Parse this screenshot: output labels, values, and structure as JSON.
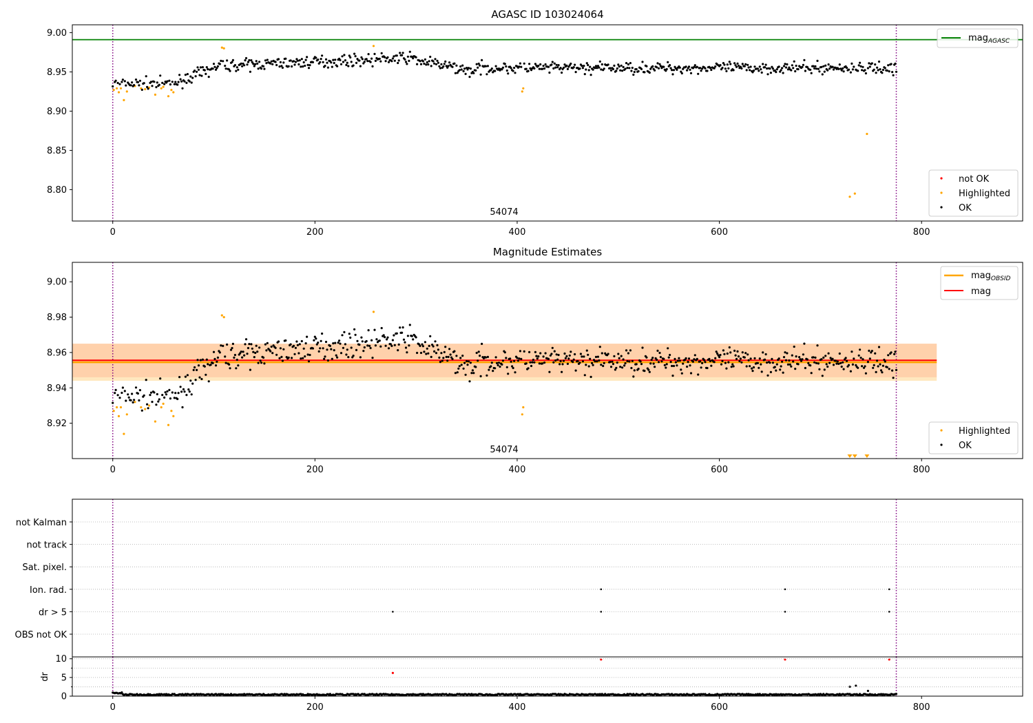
{
  "chart_data": [
    {
      "type": "scatter",
      "title": "AGASC ID 103024064",
      "xlim": [
        -40,
        900
      ],
      "ylim": [
        8.76,
        9.01
      ],
      "x_ticks": [
        "0",
        "200",
        "400",
        "600",
        "800"
      ],
      "y_ticks": [
        "8.80",
        "8.85",
        "8.90",
        "8.95",
        "9.00"
      ],
      "y_tick_values": [
        8.8,
        8.85,
        8.9,
        8.95,
        9.0
      ],
      "vlines": [
        0,
        775
      ],
      "annotation": {
        "text": "54074",
        "x": 387
      },
      "hlines": [
        {
          "name": "mag_AGASC",
          "label": "mag",
          "sub": "AGASC",
          "y": 8.991,
          "color": "#008000"
        }
      ],
      "series": [
        {
          "name": "not OK",
          "color": "#ff0000",
          "x": [],
          "y": []
        },
        {
          "name": "Highlighted",
          "color": "#ffa500",
          "x": [
            1,
            4,
            6,
            8,
            11,
            14,
            22,
            28,
            32,
            36,
            42,
            48,
            50,
            55,
            58,
            60,
            108,
            110,
            258,
            405,
            406,
            729,
            734,
            746
          ],
          "y": [
            8.927,
            8.929,
            8.924,
            8.929,
            8.914,
            8.925,
            8.932,
            8.929,
            8.928,
            8.93,
            8.921,
            8.929,
            8.931,
            8.919,
            8.927,
            8.924,
            8.981,
            8.98,
            8.983,
            8.925,
            8.929,
            8.791,
            8.795,
            8.871
          ]
        },
        {
          "name": "OK",
          "color": "#000000",
          "x": [],
          "y": [],
          "generated": true
        }
      ],
      "legends": [
        {
          "position": "top-right",
          "entries": [
            "mag_AGASC"
          ]
        },
        {
          "position": "bottom-right",
          "entries": [
            "not OK",
            "Highlighted",
            "OK"
          ]
        }
      ]
    },
    {
      "type": "scatter",
      "title": "Magnitude Estimates",
      "xlim": [
        -40,
        900
      ],
      "ylim": [
        8.9,
        9.011
      ],
      "x_ticks": [
        "0",
        "200",
        "400",
        "600",
        "800"
      ],
      "y_ticks": [
        "8.92",
        "8.94",
        "8.96",
        "8.98",
        "9.00"
      ],
      "y_tick_values": [
        8.92,
        8.94,
        8.96,
        8.98,
        9.0
      ],
      "vlines": [
        0,
        775
      ],
      "annotation": {
        "text": "54074",
        "x": 387
      },
      "bands": [
        {
          "name": "mag_band",
          "y0": 8.946,
          "y1": 8.965,
          "x0": -40,
          "x1": 815,
          "color": "#ff9aa6",
          "opacity": 0.3
        },
        {
          "name": "mag_obsid_band",
          "y0": 8.944,
          "y1": 8.965,
          "x0": -40,
          "x1": 815,
          "color": "#ffa500",
          "opacity": 0.25
        }
      ],
      "hlines": [
        {
          "name": "mag_OBSID",
          "label": "mag",
          "sub": "OBSID",
          "y": 8.9545,
          "x0": -40,
          "x1": 815,
          "color": "#ffa500",
          "width": 2.5
        },
        {
          "name": "mag",
          "label": "mag",
          "y": 8.9556,
          "x0": -40,
          "x1": 815,
          "color": "#ff0000",
          "width": 2
        }
      ],
      "series": [
        {
          "name": "Highlighted",
          "color": "#ffa500",
          "x": [
            1,
            4,
            6,
            8,
            11,
            14,
            22,
            28,
            32,
            36,
            42,
            48,
            50,
            55,
            58,
            60,
            108,
            110,
            258,
            405,
            406
          ],
          "y": [
            8.927,
            8.929,
            8.924,
            8.929,
            8.914,
            8.925,
            8.932,
            8.929,
            8.928,
            8.93,
            8.921,
            8.929,
            8.931,
            8.919,
            8.927,
            8.924,
            8.981,
            8.98,
            8.983,
            8.925,
            8.929
          ]
        },
        {
          "name": "OK",
          "color": "#000000",
          "x": [],
          "y": [],
          "generated": true
        }
      ],
      "below_range_markers": {
        "x": [
          729,
          734,
          746
        ],
        "color": "#ffa500"
      },
      "legends": [
        {
          "position": "top-right",
          "entries": [
            "mag_OBSID",
            "mag"
          ]
        },
        {
          "position": "bottom-right",
          "entries": [
            "Highlighted",
            "OK"
          ]
        }
      ]
    },
    {
      "type": "scatter",
      "title": "",
      "xlim": [
        -40,
        900
      ],
      "categories": [
        "not Kalman",
        "not track",
        "Sat. pixel.",
        "Ion. rad.",
        "dr > 5",
        "OBS not OK"
      ],
      "vlines": [
        0,
        775
      ],
      "points": [
        {
          "category": "Ion. rad.",
          "x": [
            483,
            665,
            768
          ]
        },
        {
          "category": "dr > 5",
          "x": [
            277,
            483,
            665,
            768
          ]
        }
      ]
    },
    {
      "type": "scatter",
      "title": "",
      "ylabel": "dr",
      "xlim": [
        -40,
        900
      ],
      "ylim": [
        0,
        10.5
      ],
      "x_ticks": [
        "0",
        "200",
        "400",
        "600",
        "800"
      ],
      "y_ticks": [
        "0",
        "5",
        "10"
      ],
      "y_tick_values": [
        0,
        5,
        10
      ],
      "vlines": [
        0,
        775
      ],
      "series": [
        {
          "name": "dr",
          "color": "#000000",
          "x": [],
          "y": [],
          "generated": true
        },
        {
          "name": "dr_outliers",
          "color": "#000000",
          "x": [
            729,
            735,
            747
          ],
          "y": [
            2.5,
            2.8,
            1.4
          ]
        },
        {
          "name": "dr_flagged",
          "color": "#ff0000",
          "x": [
            277,
            483,
            665,
            768
          ],
          "y": [
            6.2,
            9.8,
            9.8,
            9.8
          ]
        }
      ]
    }
  ]
}
